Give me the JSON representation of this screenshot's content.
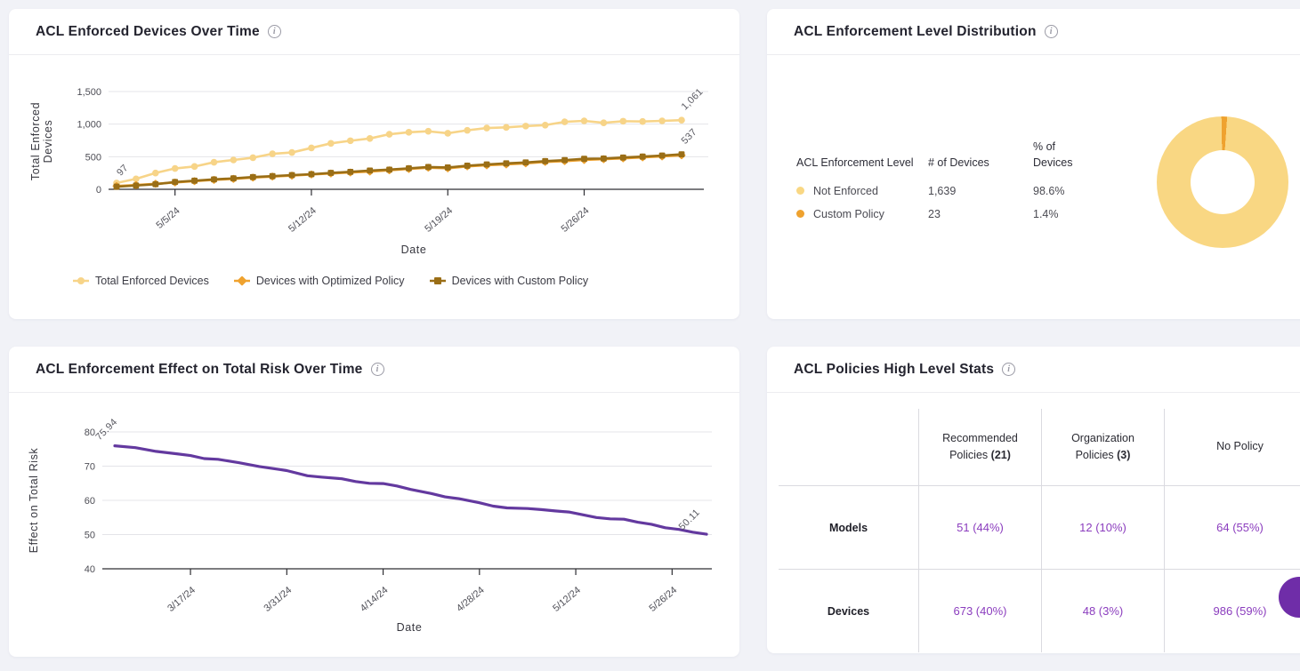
{
  "icons": {
    "info": "i"
  },
  "ui": {
    "background": "#F1F2F7",
    "fab_color": "#6F2DA8",
    "link_purple": "#8B3DBE"
  },
  "chart_data": [
    {
      "id": "devices_over_time",
      "type": "line",
      "title": "ACL Enforced Devices Over Time",
      "xlabel": "Date",
      "ylabel": "Total Enforced Devices",
      "ylabel_lines": [
        "Total Enforced",
        "Devices"
      ],
      "ylim": [
        0,
        1500
      ],
      "yticks": [
        0,
        500,
        1000,
        1500
      ],
      "ytick_labels": [
        "0",
        "500",
        "1,000",
        "1,500"
      ],
      "grid": true,
      "legend_position": "bottom",
      "x": [
        "5/2/24",
        "5/3/24",
        "5/4/24",
        "5/5/24",
        "5/6/24",
        "5/7/24",
        "5/8/24",
        "5/9/24",
        "5/10/24",
        "5/11/24",
        "5/12/24",
        "5/13/24",
        "5/14/24",
        "5/15/24",
        "5/16/24",
        "5/17/24",
        "5/18/24",
        "5/19/24",
        "5/20/24",
        "5/21/24",
        "5/22/24",
        "5/23/24",
        "5/24/24",
        "5/25/24",
        "5/26/24",
        "5/27/24",
        "5/28/24",
        "5/29/24",
        "5/30/24",
        "5/31/24"
      ],
      "x_tick_indices": [
        3,
        10,
        17,
        24
      ],
      "x_tick_labels": [
        "5/5/24",
        "5/12/24",
        "5/19/24",
        "5/26/24"
      ],
      "series": [
        {
          "name": "Total Enforced Devices",
          "color": "#F7D488",
          "marker": "circle",
          "first_label": "97",
          "last_label": "1,061",
          "values": [
            97,
            160,
            250,
            320,
            350,
            415,
            450,
            485,
            545,
            565,
            635,
            705,
            745,
            780,
            845,
            875,
            890,
            860,
            905,
            940,
            950,
            970,
            985,
            1035,
            1050,
            1020,
            1045,
            1040,
            1050,
            1061
          ]
        },
        {
          "name": "Devices with Optimized Policy",
          "color": "#EFA22F",
          "marker": "diamond",
          "first_label": null,
          "last_label": null,
          "values": [
            50,
            65,
            85,
            105,
            125,
            145,
            160,
            180,
            195,
            210,
            228,
            243,
            258,
            272,
            292,
            312,
            332,
            322,
            352,
            368,
            382,
            398,
            420,
            432,
            450,
            462,
            475,
            490,
            505,
            522
          ]
        },
        {
          "name": "Devices with Custom Policy",
          "color": "#9A6E16",
          "marker": "square",
          "first_label": null,
          "last_label": "537",
          "values": [
            40,
            58,
            78,
            112,
            132,
            152,
            168,
            188,
            202,
            218,
            232,
            252,
            268,
            288,
            302,
            322,
            342,
            335,
            362,
            382,
            398,
            412,
            432,
            448,
            468,
            472,
            488,
            502,
            518,
            537
          ]
        }
      ]
    },
    {
      "id": "enforcement_distribution",
      "type": "pie",
      "title": "ACL Enforcement Level Distribution",
      "donut": true,
      "table_headers": [
        "ACL Enforcement Level",
        "# of Devices",
        "% of Devices"
      ],
      "slices": [
        {
          "label": "Not Enforced",
          "devices": "1,639",
          "percent": "98.6%",
          "value": 98.6,
          "color": "#F9D783"
        },
        {
          "label": "Custom Policy",
          "devices": "23",
          "percent": "1.4%",
          "value": 1.4,
          "color": "#EFA22F"
        }
      ]
    },
    {
      "id": "risk_over_time",
      "type": "line",
      "title": "ACL Enforcement Effect on Total Risk Over Time",
      "xlabel": "Date",
      "ylabel": "Effect on Total Risk",
      "ylim": [
        40,
        80
      ],
      "yticks": [
        40,
        50,
        60,
        70,
        80
      ],
      "ytick_labels": [
        "40",
        "50",
        "60",
        "70",
        "80"
      ],
      "grid": true,
      "color": "#63399F",
      "first_label": "75.94",
      "last_label": "50.11",
      "x_domain_days": [
        0,
        86
      ],
      "x_tick_days": [
        11,
        25,
        39,
        53,
        67,
        81
      ],
      "x_tick_labels": [
        "3/17/24",
        "3/31/24",
        "4/14/24",
        "4/28/24",
        "5/12/24",
        "5/26/24"
      ],
      "x_days": [
        0,
        3,
        6,
        9,
        11,
        13,
        15,
        18,
        21,
        24,
        25,
        28,
        30,
        33,
        35,
        37,
        39,
        41,
        43,
        46,
        48,
        50,
        53,
        55,
        57,
        60,
        62,
        64,
        66,
        68,
        70,
        72,
        74,
        76,
        78,
        80,
        82,
        84,
        86
      ],
      "values": [
        75.94,
        75.4,
        74.3,
        73.6,
        73.1,
        72.2,
        72.0,
        71.0,
        69.9,
        69.0,
        68.7,
        67.2,
        66.8,
        66.3,
        65.5,
        65.0,
        64.9,
        64.2,
        63.2,
        62.0,
        61.0,
        60.5,
        59.3,
        58.3,
        57.8,
        57.6,
        57.3,
        56.9,
        56.6,
        55.8,
        55.0,
        54.6,
        54.5,
        53.6,
        53.0,
        52.0,
        51.5,
        50.7,
        50.11
      ]
    },
    {
      "id": "policies_stats",
      "type": "table",
      "title": "ACL Policies High Level Stats",
      "columns": [
        {
          "label": "Recommended Policies",
          "count_fmt": "(21)"
        },
        {
          "label": "Organization Policies",
          "count_fmt": "(3)"
        },
        {
          "label": "No Policy",
          "count_fmt": null
        }
      ],
      "rows": [
        {
          "label": "Models",
          "values": [
            "51 (44%)",
            "12 (10%)",
            "64 (55%)"
          ]
        },
        {
          "label": "Devices",
          "values": [
            "673 (40%)",
            "48 (3%)",
            "986 (59%)"
          ]
        }
      ]
    }
  ]
}
